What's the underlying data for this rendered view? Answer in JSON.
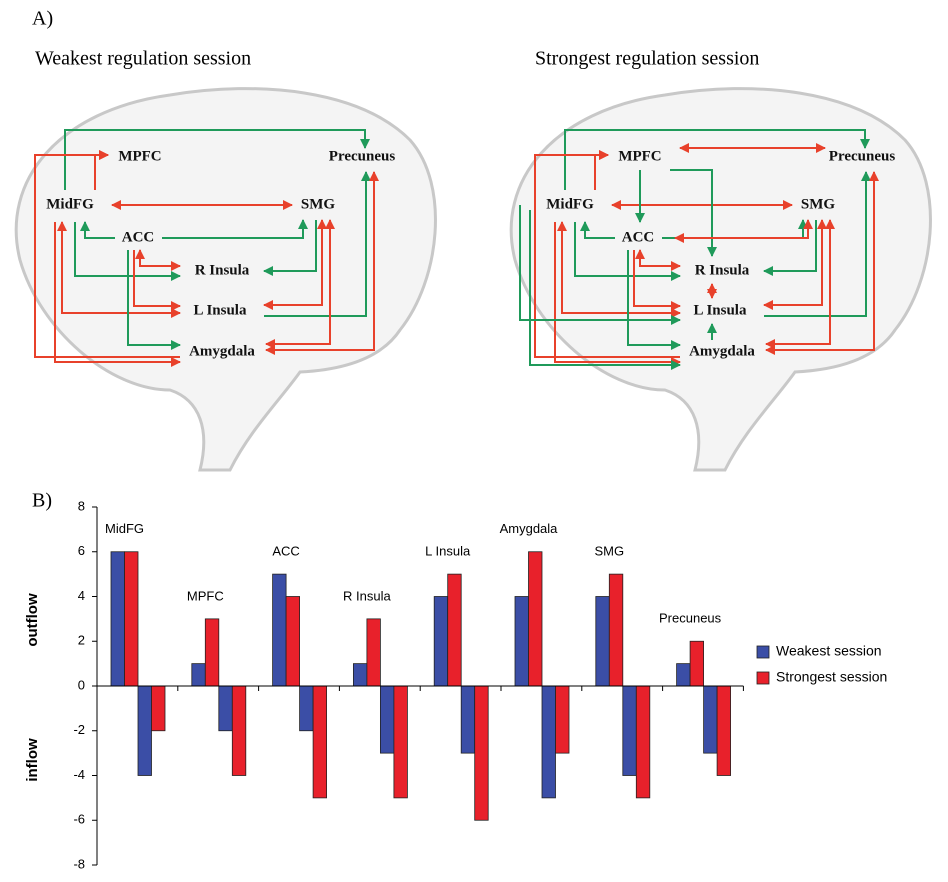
{
  "panel_a": {
    "label": "A)",
    "diagrams": [
      {
        "title": "Weakest regulation session",
        "nodes": [
          "MidFG",
          "MPFC",
          "ACC",
          "R Insula",
          "L Insula",
          "Amygdala",
          "SMG",
          "Precuneus"
        ]
      },
      {
        "title": "Strongest regulation session",
        "nodes": [
          "MidFG",
          "MPFC",
          "ACC",
          "R Insula",
          "L Insula",
          "Amygdala",
          "SMG",
          "Precuneus"
        ]
      }
    ]
  },
  "panel_b_label": "B)",
  "chart_data": {
    "type": "bar",
    "categories": [
      "MidFG",
      "MPFC",
      "ACC",
      "R Insula",
      "L Insula",
      "Amygdala",
      "SMG",
      "Precuneus"
    ],
    "series": [
      {
        "name": "Weakest session",
        "color": "#3b4ea6",
        "outflow": [
          6,
          1,
          5,
          1,
          4,
          4,
          4,
          1
        ],
        "inflow": [
          -4,
          -2,
          -2,
          -3,
          -3,
          -5,
          -4,
          -3
        ]
      },
      {
        "name": "Strongest session",
        "color": "#e8212b",
        "outflow": [
          6,
          3,
          4,
          3,
          5,
          6,
          5,
          2
        ],
        "inflow": [
          -2,
          -4,
          -5,
          -5,
          -6,
          -3,
          -5,
          -4
        ]
      }
    ],
    "y_labels": [
      "outflow",
      "inflow"
    ],
    "ylim": [
      -8,
      8
    ],
    "yticks": [
      -8,
      -6,
      -4,
      -2,
      0,
      2,
      4,
      6,
      8
    ],
    "legend": "right"
  }
}
